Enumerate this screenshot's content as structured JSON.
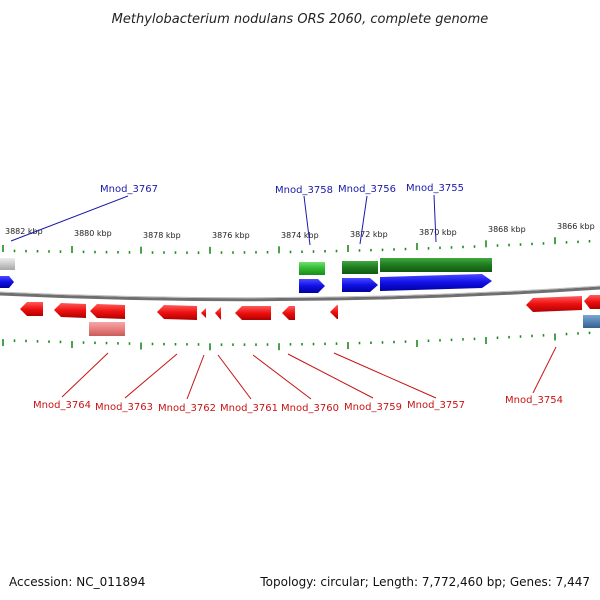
{
  "title": "Methylobacterium nodulans ORS 2060, complete genome",
  "footer": {
    "accession": "Accession: NC_011894",
    "summary": "Topology: circular; Length: 7,772,460 bp; Genes: 7,447"
  },
  "scale_labels": [
    "3882 kbp",
    "3880 kbp",
    "3878 kbp",
    "3876 kbp",
    "3874 kbp",
    "3872 kbp",
    "3870 kbp",
    "3868 kbp",
    "3866 kbp"
  ],
  "genes_top": [
    "Mnod_3767",
    "Mnod_3758",
    "Mnod_3756",
    "Mnod_3755"
  ],
  "genes_bottom": [
    "Mnod_3764",
    "Mnod_3763",
    "Mnod_3762",
    "Mnod_3761",
    "Mnod_3760",
    "Mnod_3759",
    "Mnod_3757",
    "Mnod_3754"
  ],
  "colors": {
    "forward_gene": "#1010e0",
    "reverse_gene": "#e01010",
    "rna_feature": "#2fb82f",
    "pale_reverse": "#e88080",
    "grey_feature": "#c8c8c8",
    "steel_feature": "#4a7fb5",
    "tick": "#1f8a1f",
    "backbone": "#7a7a7a"
  }
}
